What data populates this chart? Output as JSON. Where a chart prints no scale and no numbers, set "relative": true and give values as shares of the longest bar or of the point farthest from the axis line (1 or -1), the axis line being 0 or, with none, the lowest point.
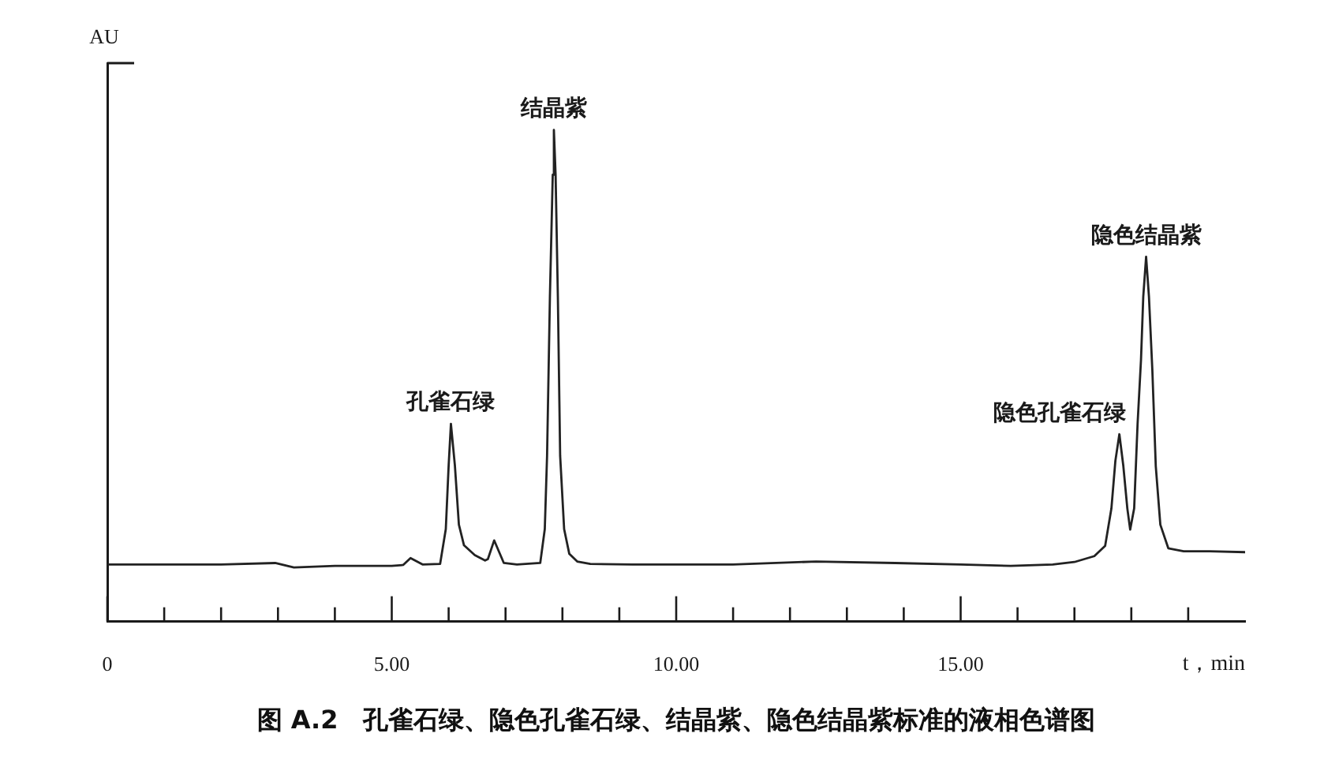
{
  "chart_data": {
    "type": "line",
    "title": "图 A.2　孔雀石绿、隐色孔雀石绿、结晶紫、隐色结晶紫标准的液相色谱图",
    "xlabel": "t，min",
    "ylabel": "AU",
    "relative": true,
    "color": "#222222",
    "xlim": [
      0,
      20
    ],
    "xticks": [
      0,
      {
        "value": 1,
        "label": null
      },
      {
        "value": 2,
        "label": null
      },
      {
        "value": 3,
        "label": null
      },
      {
        "value": 4,
        "label": null
      },
      {
        "value": 5,
        "label": "5.00"
      },
      {
        "value": 6,
        "label": null
      },
      {
        "value": 7,
        "label": null
      },
      {
        "value": 8,
        "label": null
      },
      {
        "value": 9,
        "label": null
      },
      {
        "value": 10,
        "label": "10.00"
      },
      {
        "value": 11,
        "label": null
      },
      {
        "value": 12,
        "label": null
      },
      {
        "value": 13,
        "label": null
      },
      {
        "value": 14,
        "label": null
      },
      {
        "value": 15,
        "label": "15.00"
      },
      {
        "value": 16,
        "label": null
      },
      {
        "value": 17,
        "label": null
      },
      {
        "value": 18,
        "label": null
      },
      {
        "value": 19,
        "label": null
      }
    ],
    "x": [
      0,
      1.0,
      2.0,
      2.95,
      3.28,
      4.0,
      5.0,
      5.2,
      5.33,
      5.54,
      5.85,
      5.95,
      6.0,
      6.04,
      6.11,
      6.18,
      6.27,
      6.46,
      6.64,
      6.69,
      6.8,
      6.97,
      7.2,
      7.61,
      7.69,
      7.73,
      7.78,
      7.83,
      7.85,
      7.88,
      7.92,
      7.96,
      8.03,
      8.12,
      8.26,
      8.49,
      9.23,
      11.0,
      12.46,
      13.85,
      15.0,
      15.88,
      16.62,
      17.0,
      17.35,
      17.54,
      17.65,
      17.72,
      17.79,
      17.86,
      17.93,
      17.98,
      18.05,
      18.11,
      18.17,
      18.21,
      18.26,
      18.31,
      18.37,
      18.43,
      18.51,
      18.65,
      18.92,
      19.38,
      20.0
    ],
    "values": [
      0.116,
      0.116,
      0.116,
      0.119,
      0.11,
      0.113,
      0.113,
      0.115,
      0.129,
      0.116,
      0.117,
      0.188,
      0.317,
      0.402,
      0.317,
      0.197,
      0.155,
      0.135,
      0.124,
      0.127,
      0.165,
      0.119,
      0.116,
      0.119,
      0.188,
      0.337,
      0.66,
      0.909,
      1,
      0.909,
      0.66,
      0.337,
      0.188,
      0.138,
      0.122,
      0.117,
      0.116,
      0.116,
      0.122,
      0.119,
      0.116,
      0.113,
      0.116,
      0.121,
      0.133,
      0.154,
      0.23,
      0.327,
      0.381,
      0.316,
      0.23,
      0.187,
      0.23,
      0.402,
      0.532,
      0.661,
      0.742,
      0.661,
      0.51,
      0.316,
      0.197,
      0.149,
      0.143,
      0.143,
      0.141
    ],
    "annotations": [
      {
        "text": "孔雀石绿",
        "x": 6.04,
        "y": 0.402
      },
      {
        "text": "结晶紫",
        "x": 7.85,
        "y": 1
      },
      {
        "text": "隐色孔雀石绿",
        "x": 17.79,
        "y": 0.381
      },
      {
        "text": "隐色结晶紫",
        "x": 18.26,
        "y": 0.742
      }
    ]
  }
}
